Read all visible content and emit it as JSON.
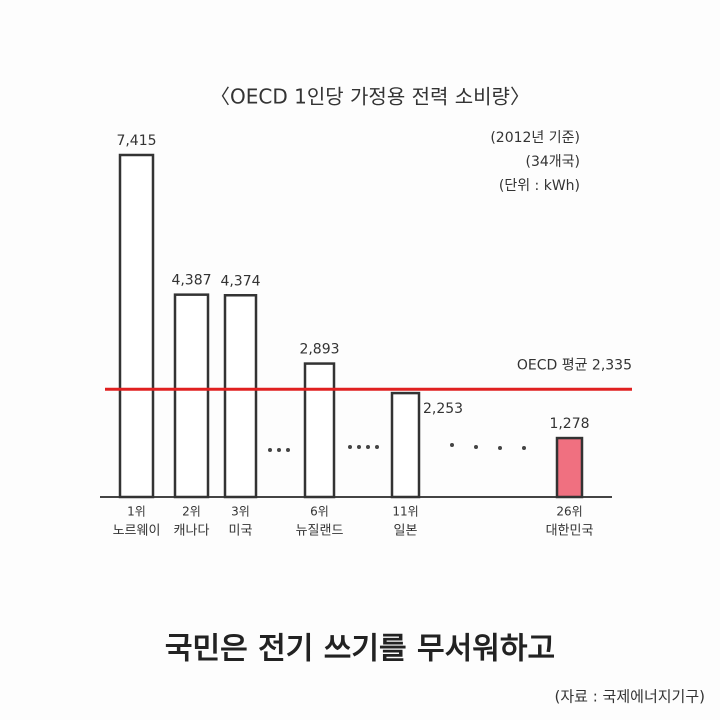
{
  "chart_data": {
    "type": "bar",
    "title": "〈OECD 1인당 가정용 전력 소비량〉",
    "notes": [
      "(2012년 기준)",
      "(34개국)",
      "(단위 : kWh)"
    ],
    "ranks": [
      "1위",
      "2위",
      "3위",
      "6위",
      "11위",
      "26위"
    ],
    "categories": [
      "노르웨이",
      "캐나다",
      "미국",
      "뉴질랜드",
      "일본",
      "대한민국"
    ],
    "values": [
      7415,
      4387,
      4374,
      2893,
      2253,
      1278
    ],
    "value_labels": [
      "7,415",
      "4,387",
      "4,374",
      "2,893",
      "2,253",
      "1,278"
    ],
    "colors": [
      "#ffffff",
      "#ffffff",
      "#ffffff",
      "#ffffff",
      "#ffffff",
      "#f07080"
    ],
    "reference_line": {
      "label": "OECD 평균 2,335",
      "value": 2335,
      "color": "#e02020"
    },
    "caption": "국민은 전기 쓰기를 무서워하고",
    "source": "(자료 : 국제에너지기구)"
  }
}
